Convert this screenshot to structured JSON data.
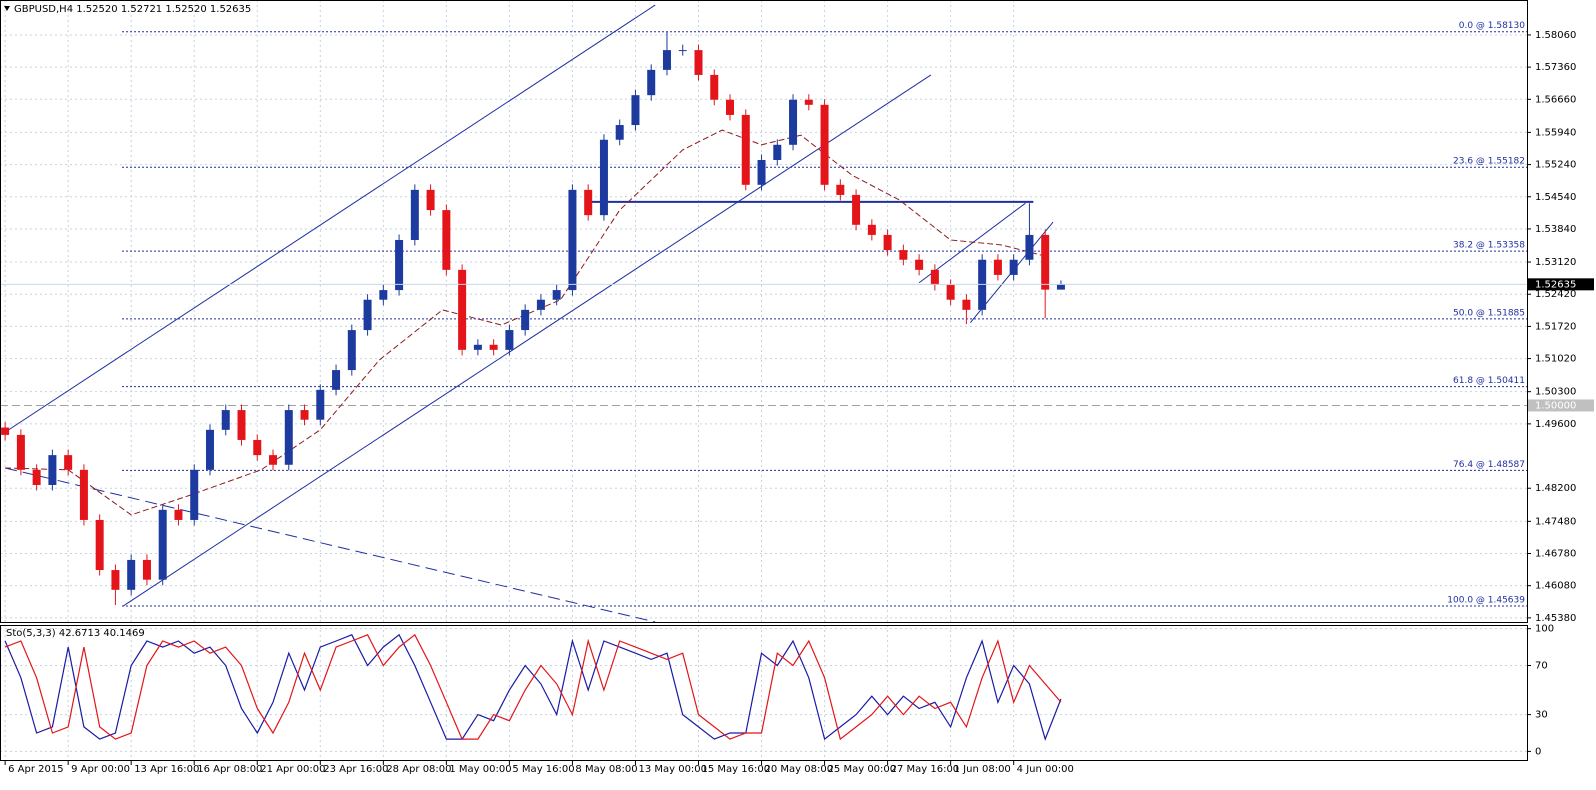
{
  "chart_data": [
    {
      "type": "candlestick",
      "title": "GBPUSD,H4",
      "ohlc_labels": [
        "1.52520",
        "1.52721",
        "1.52520",
        "1.52635"
      ],
      "current_price_label": "1.52635",
      "up_color": "#1d3a9e",
      "down_color": "#e3151a",
      "x": [
        0,
        4,
        8,
        12,
        16,
        20,
        24,
        28,
        32,
        36,
        40,
        44,
        48,
        52,
        56,
        60,
        64,
        68,
        72,
        76,
        80,
        84,
        88,
        92,
        96,
        100,
        104,
        108,
        112,
        116,
        120,
        124,
        128,
        132,
        136,
        140,
        144,
        148,
        152,
        156,
        160,
        164,
        168,
        172,
        176,
        180,
        184,
        188,
        192,
        196,
        200,
        204,
        208,
        212,
        216,
        220,
        224,
        228,
        232,
        236,
        240,
        244,
        248,
        252,
        256,
        260,
        264,
        268
      ],
      "open": [
        1.4952,
        1.4936,
        1.486,
        1.4827,
        1.4892,
        1.486,
        1.4751,
        1.4642,
        1.4599,
        1.4664,
        1.4621,
        1.4773,
        1.4751,
        1.486,
        1.4947,
        1.499,
        1.4925,
        1.4892,
        1.4871,
        1.499,
        1.4969,
        1.5034,
        1.5077,
        1.5164,
        1.523,
        1.5251,
        1.536,
        1.5469,
        1.5425,
        1.5295,
        1.5121,
        1.5132,
        1.5121,
        1.5164,
        1.5208,
        1.523,
        1.5251,
        1.5469,
        1.5414,
        1.5578,
        1.561,
        1.5675,
        1.573,
        1.5773,
        1.5773,
        1.5719,
        1.5665,
        1.5632,
        1.548,
        1.5534,
        1.5567,
        1.5665,
        1.5654,
        1.548,
        1.5458,
        1.5393,
        1.5371,
        1.5338,
        1.5317,
        1.5295,
        1.5262,
        1.523,
        1.5208,
        1.5317,
        1.5284,
        1.5317,
        1.5371,
        1.5252
      ],
      "high": [
        1.4964,
        1.4948,
        1.4872,
        1.4904,
        1.4904,
        1.4872,
        1.4763,
        1.4654,
        1.4676,
        1.4676,
        1.4785,
        1.4785,
        1.4872,
        1.4959,
        1.5002,
        1.5002,
        1.4937,
        1.4904,
        1.5002,
        1.5002,
        1.5046,
        1.5089,
        1.5176,
        1.5242,
        1.5263,
        1.5372,
        1.5481,
        1.5481,
        1.5437,
        1.5307,
        1.5144,
        1.5144,
        1.5176,
        1.522,
        1.5242,
        1.5263,
        1.5481,
        1.5481,
        1.559,
        1.5622,
        1.5687,
        1.5742,
        1.5813,
        1.5785,
        1.5785,
        1.5731,
        1.5677,
        1.5644,
        1.5546,
        1.5579,
        1.5677,
        1.5677,
        1.5666,
        1.5492,
        1.547,
        1.5405,
        1.5383,
        1.535,
        1.5329,
        1.5307,
        1.5274,
        1.5242,
        1.5329,
        1.5329,
        1.5329,
        1.544,
        1.5383,
        1.52721
      ],
      "low": [
        1.4924,
        1.4848,
        1.4815,
        1.4815,
        1.4848,
        1.4739,
        1.463,
        1.4566,
        1.4587,
        1.4609,
        1.4609,
        1.4739,
        1.4739,
        1.4848,
        1.4935,
        1.4913,
        1.488,
        1.4859,
        1.4859,
        1.4957,
        1.4957,
        1.5022,
        1.5065,
        1.5152,
        1.5218,
        1.5239,
        1.5348,
        1.5413,
        1.5283,
        1.5109,
        1.5109,
        1.5109,
        1.5109,
        1.5152,
        1.5196,
        1.5218,
        1.5239,
        1.5402,
        1.5402,
        1.5566,
        1.5598,
        1.5663,
        1.5718,
        1.5761,
        1.5707,
        1.5653,
        1.562,
        1.5468,
        1.5468,
        1.5522,
        1.5555,
        1.5642,
        1.5468,
        1.5446,
        1.5381,
        1.5359,
        1.5326,
        1.5305,
        1.5283,
        1.525,
        1.5218,
        1.5177,
        1.5196,
        1.5272,
        1.5272,
        1.5305,
        1.519,
        1.5252
      ],
      "close": [
        1.4936,
        1.486,
        1.4827,
        1.4892,
        1.486,
        1.4751,
        1.4642,
        1.4599,
        1.4664,
        1.4621,
        1.4773,
        1.4751,
        1.486,
        1.4947,
        1.499,
        1.4925,
        1.4892,
        1.4871,
        1.499,
        1.4969,
        1.5034,
        1.5077,
        1.5164,
        1.523,
        1.5251,
        1.536,
        1.5469,
        1.5425,
        1.5295,
        1.5121,
        1.5132,
        1.5121,
        1.5164,
        1.5208,
        1.523,
        1.5251,
        1.5469,
        1.5414,
        1.5578,
        1.561,
        1.5675,
        1.573,
        1.5773,
        1.5773,
        1.5719,
        1.5665,
        1.5632,
        1.548,
        1.5534,
        1.5567,
        1.5665,
        1.5654,
        1.548,
        1.5458,
        1.5393,
        1.5371,
        1.5338,
        1.5317,
        1.5295,
        1.5262,
        1.523,
        1.5208,
        1.5317,
        1.5284,
        1.5317,
        1.5371,
        1.5252,
        1.52635
      ],
      "ma": {
        "color": "#8b1a1a",
        "x": [
          0,
          16,
          32,
          47,
          65,
          80,
          95,
          111,
          126,
          141,
          156,
          172,
          182,
          192,
          202,
          215,
          227,
          240,
          253,
          263
        ],
        "values": [
          1.4864,
          1.486,
          1.4762,
          1.4805,
          1.486,
          1.4947,
          1.5099,
          1.5208,
          1.5175,
          1.523,
          1.5425,
          1.5556,
          1.5599,
          1.5567,
          1.5588,
          1.5501,
          1.5447,
          1.536,
          1.5349,
          1.5327
        ]
      },
      "trendlines": [
        {
          "x": [
            0,
            165
          ],
          "y": [
            1.4942,
            1.5871
          ],
          "color": "#1f2fa0",
          "width": 1,
          "dash": false
        },
        {
          "x": [
            30,
            235
          ],
          "y": [
            1.4564,
            1.5719
          ],
          "color": "#1f2fa0",
          "width": 1,
          "dash": false
        },
        {
          "x": [
            148,
            261
          ],
          "y": [
            1.5443,
            1.5443
          ],
          "color": "#1f2fa0",
          "width": 2,
          "dash": false
        },
        {
          "x": [
            0,
            165
          ],
          "y": [
            1.4864,
            1.4529
          ],
          "color": "#1f2fa0",
          "width": 1,
          "dash": true
        },
        {
          "x": [
            232,
            259
          ],
          "y": [
            1.5267,
            1.544
          ],
          "color": "#1f2fa0",
          "width": 1,
          "dash": false
        },
        {
          "x": [
            245,
            266
          ],
          "y": [
            1.518,
            1.5399
          ],
          "color": "#1f2fa0",
          "width": 1,
          "dash": false
        }
      ],
      "fibonacci": [
        {
          "value": 1.5813,
          "label": "0.0 @ 1.58130"
        },
        {
          "value": 1.55182,
          "label": "23.6 @ 1.55182"
        },
        {
          "value": 1.53358,
          "label": "38.2 @ 1.53358"
        },
        {
          "value": 1.51885,
          "label": "50.0 @ 1.51885"
        },
        {
          "value": 1.50411,
          "label": "61.8 @ 1.50411"
        },
        {
          "value": 1.48587,
          "label": "76.4 @ 1.48587"
        },
        {
          "value": 1.45639,
          "label": "100.0 @ 1.45639"
        }
      ],
      "levels": [
        {
          "value": 1.5,
          "label": "1.50000"
        }
      ],
      "xlim": [
        -1.3,
        386.3
      ],
      "xticks": [
        {
          "value": 0,
          "label": "6 Apr 2015"
        },
        {
          "value": 16,
          "label": "9 Apr 00:00"
        },
        {
          "value": 32,
          "label": "13 Apr 16:00"
        },
        {
          "value": 48,
          "label": "16 Apr 08:00"
        },
        {
          "value": 64,
          "label": "21 Apr 00:00"
        },
        {
          "value": 80,
          "label": "23 Apr 16:00"
        },
        {
          "value": 96,
          "label": "28 Apr 08:00"
        },
        {
          "value": 112,
          "label": "1 May 00:00"
        },
        {
          "value": 128,
          "label": "5 May 16:00"
        },
        {
          "value": 144,
          "label": "8 May 08:00"
        },
        {
          "value": 160,
          "label": "13 May 00:00"
        },
        {
          "value": 176,
          "label": "15 May 16:00"
        },
        {
          "value": 192,
          "label": "20 May 08:00"
        },
        {
          "value": 208,
          "label": "25 May 00:00"
        },
        {
          "value": 224,
          "label": "27 May 16:00"
        },
        {
          "value": 240,
          "label": "1 Jun 08:00"
        },
        {
          "value": 256,
          "label": "4 Jun 00:00"
        }
      ],
      "ylim": [
        1.4529,
        1.5882
      ],
      "yticks": [
        {
          "value": 1.5806,
          "label": "1.58060"
        },
        {
          "value": 1.5736,
          "label": "1.57360"
        },
        {
          "value": 1.5666,
          "label": "1.56660"
        },
        {
          "value": 1.5594,
          "label": "1.55940"
        },
        {
          "value": 1.5524,
          "label": "1.55240"
        },
        {
          "value": 1.5454,
          "label": "1.54540"
        },
        {
          "value": 1.5384,
          "label": "1.53840"
        },
        {
          "value": 1.5312,
          "label": "1.53120"
        },
        {
          "value": 1.5242,
          "label": "1.52420"
        },
        {
          "value": 1.5172,
          "label": "1.51720"
        },
        {
          "value": 1.5102,
          "label": "1.51020"
        },
        {
          "value": 1.503,
          "label": "1.50300"
        },
        {
          "value": 1.496,
          "label": "1.49600"
        },
        {
          "value": 1.482,
          "label": "1.48200"
        },
        {
          "value": 1.4748,
          "label": "1.47480"
        },
        {
          "value": 1.4678,
          "label": "1.46780"
        },
        {
          "value": 1.4608,
          "label": "1.46080"
        },
        {
          "value": 1.4538,
          "label": "1.45380"
        }
      ],
      "grid": true
    },
    {
      "type": "line",
      "title": "Sto(5,3,3)",
      "x": [
        0,
        4,
        8,
        12,
        16,
        20,
        24,
        28,
        32,
        36,
        40,
        44,
        48,
        52,
        56,
        60,
        64,
        68,
        72,
        76,
        80,
        84,
        88,
        92,
        96,
        100,
        104,
        108,
        112,
        116,
        120,
        124,
        128,
        132,
        136,
        140,
        144,
        148,
        152,
        156,
        160,
        164,
        168,
        172,
        176,
        180,
        184,
        188,
        192,
        196,
        200,
        204,
        208,
        212,
        216,
        220,
        224,
        228,
        232,
        236,
        240,
        244,
        248,
        252,
        256,
        260,
        264,
        268
      ],
      "series": [
        {
          "color": "#1a1aa6",
          "values": [
            90,
            60,
            15,
            20,
            85,
            20,
            10,
            15,
            70,
            90,
            85,
            90,
            80,
            85,
            70,
            35,
            15,
            40,
            80,
            50,
            85,
            90,
            95,
            70,
            85,
            95,
            70,
            40,
            10,
            10,
            30,
            25,
            50,
            70,
            55,
            30,
            90,
            50,
            90,
            85,
            80,
            75,
            80,
            30,
            20,
            10,
            15,
            15,
            80,
            70,
            90,
            60,
            10,
            20,
            30,
            45,
            30,
            45,
            35,
            40,
            20,
            60,
            90,
            40,
            70,
            55,
            10,
            42.6713
          ]
        },
        {
          "color": "#e3151a",
          "values": [
            85,
            90,
            60,
            15,
            20,
            85,
            20,
            10,
            15,
            70,
            90,
            85,
            90,
            80,
            85,
            70,
            35,
            15,
            40,
            80,
            50,
            85,
            90,
            95,
            70,
            85,
            95,
            70,
            40,
            10,
            10,
            30,
            25,
            50,
            70,
            55,
            30,
            90,
            50,
            90,
            85,
            80,
            75,
            80,
            30,
            20,
            10,
            15,
            15,
            80,
            70,
            90,
            60,
            10,
            20,
            30,
            45,
            30,
            45,
            35,
            40,
            20,
            60,
            90,
            40,
            70,
            55,
            40.1469
          ]
        }
      ],
      "xlim": [
        -1.3,
        386.3
      ],
      "ylim": [
        -7,
        103
      ],
      "yticks": [
        100,
        70,
        30,
        0
      ],
      "grid": true
    }
  ]
}
